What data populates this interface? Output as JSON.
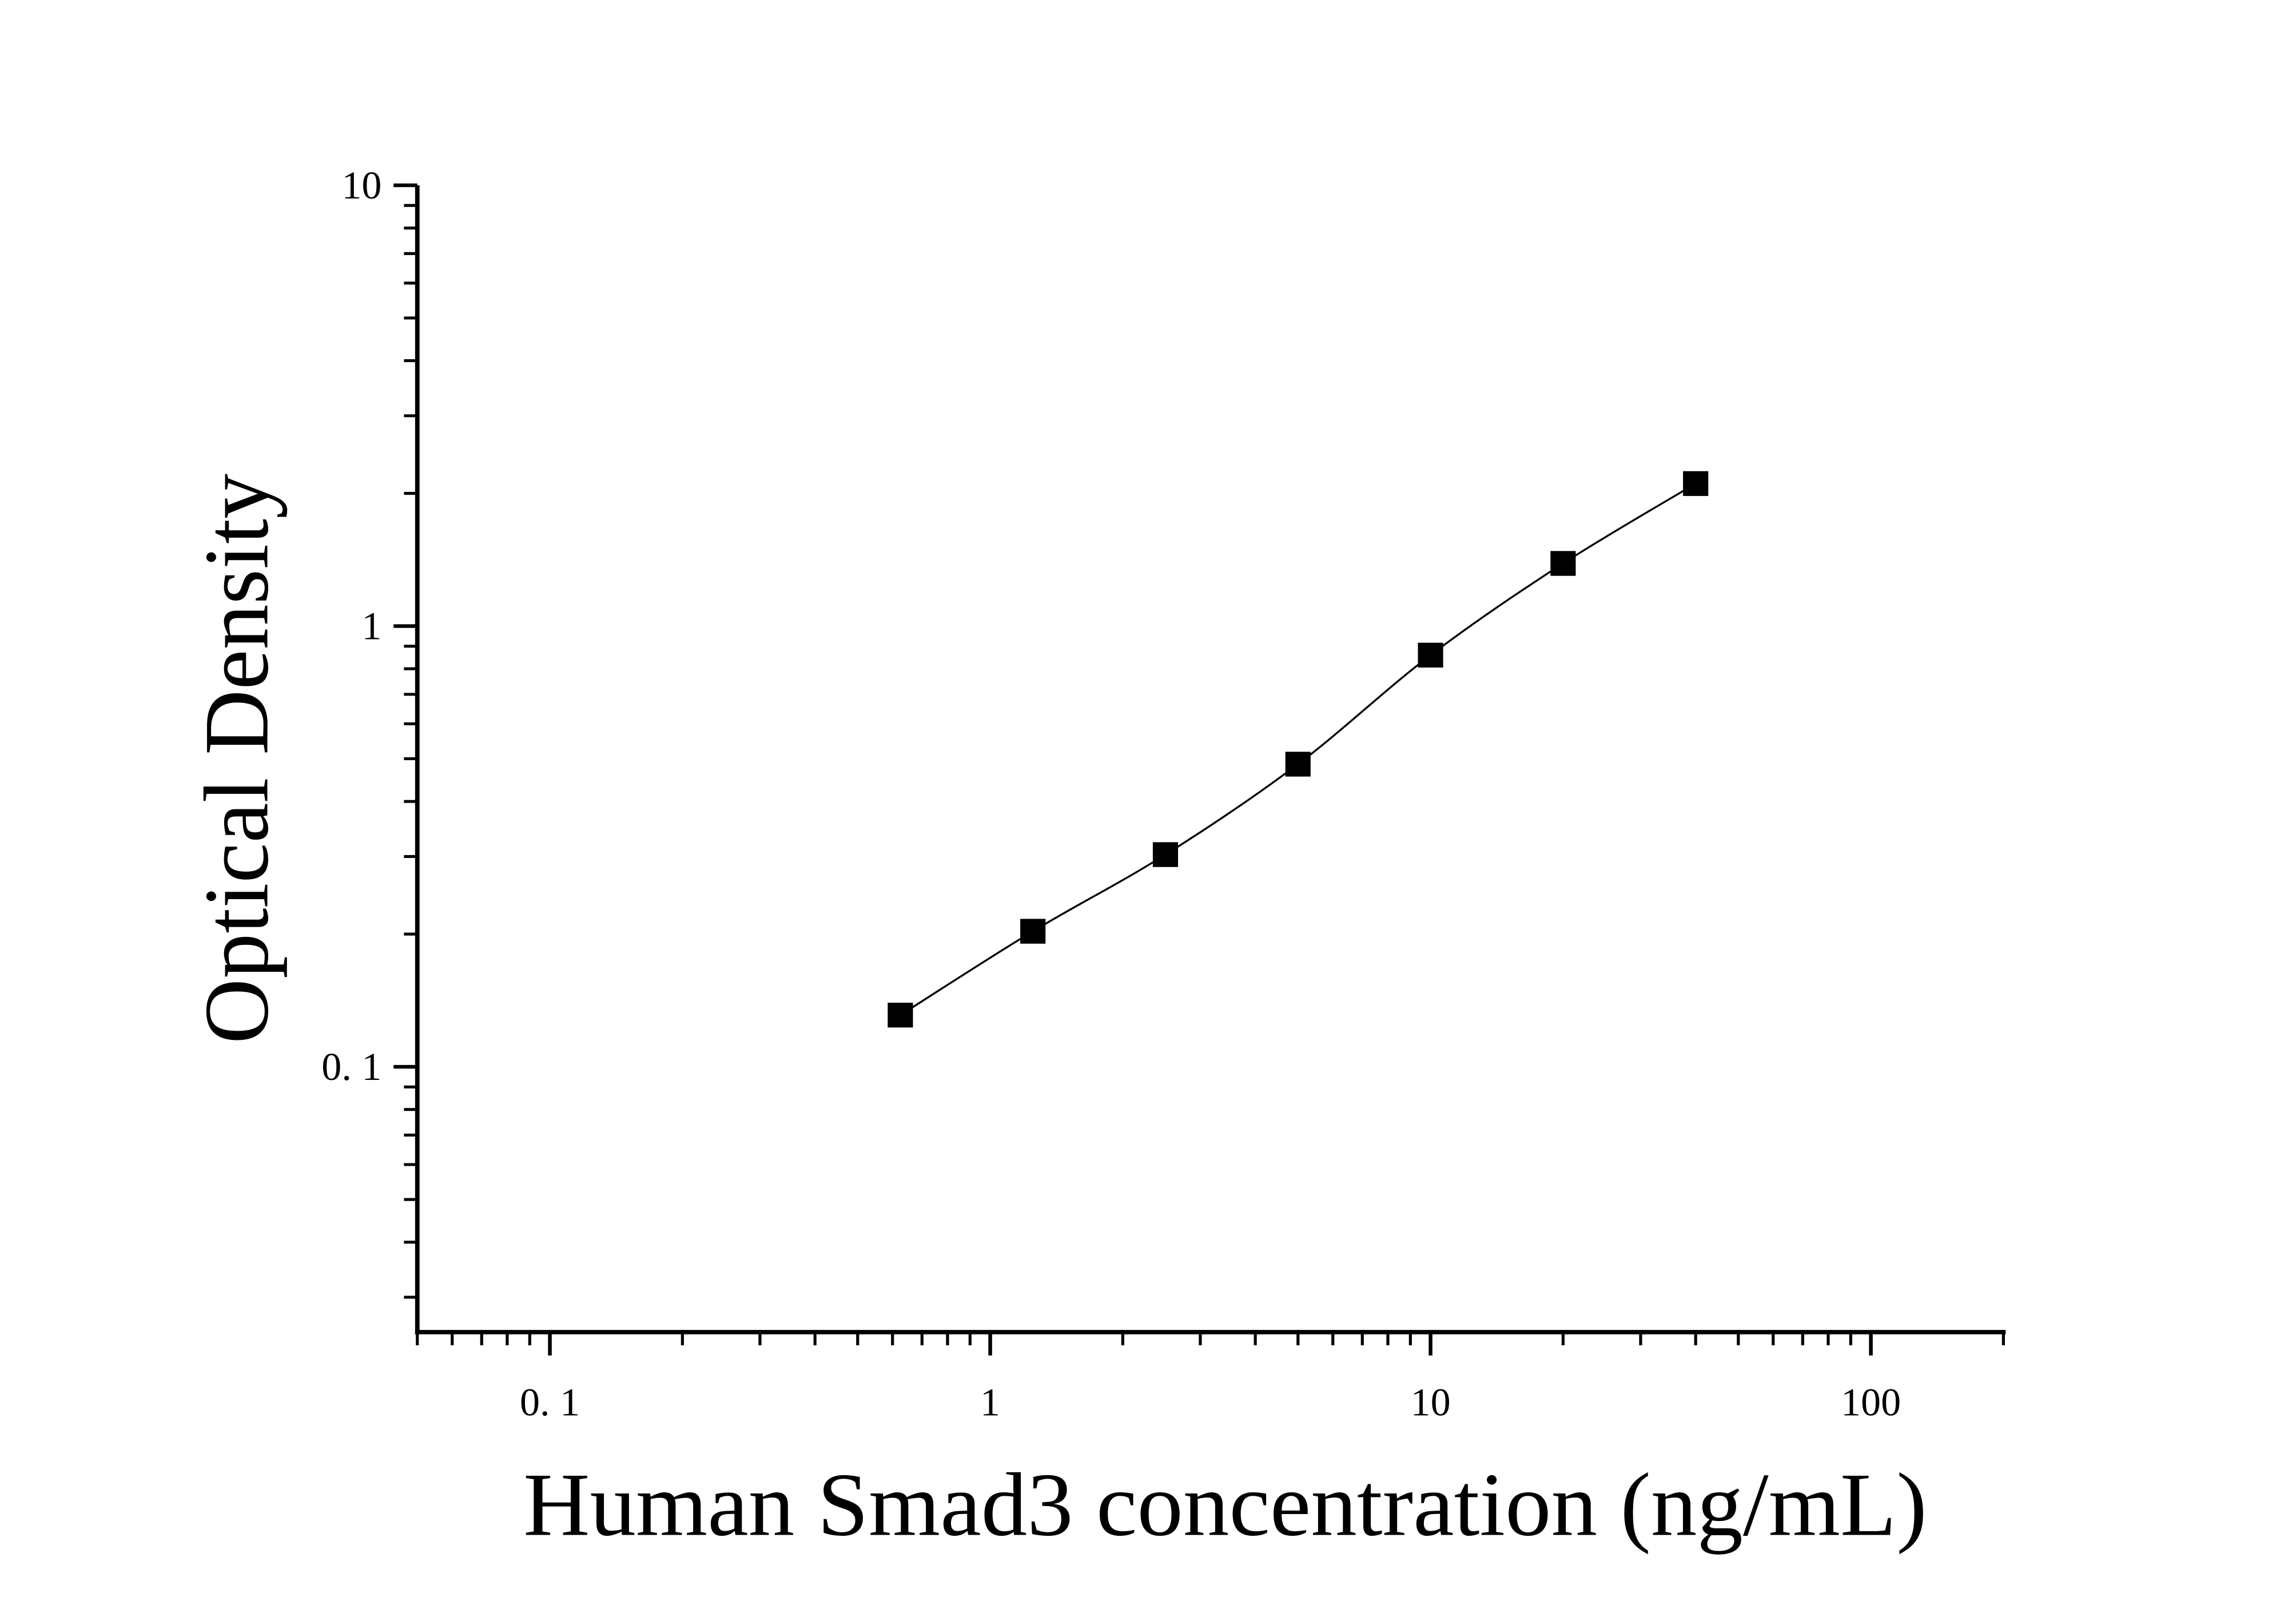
{
  "chart_data": {
    "type": "scatter",
    "x_label": "Human Smad3 concentration (ng/mL)",
    "y_label": "Optical Density",
    "x": [
      0.625,
      1.25,
      2.5,
      5,
      10,
      20,
      40
    ],
    "values": [
      0.131,
      0.203,
      0.303,
      0.486,
      0.859,
      1.387,
      2.105
    ],
    "color": "#000000",
    "line": true,
    "xscale": "log",
    "yscale": "log",
    "xlim": [
      0.05,
      200
    ],
    "ylim": [
      0.025,
      10
    ],
    "xticks": [
      {
        "value": 0.1,
        "label": "0. 1"
      },
      1,
      10,
      100
    ],
    "yticks": [
      {
        "value": 0.1,
        "label": "0. 1"
      },
      1,
      10
    ]
  }
}
